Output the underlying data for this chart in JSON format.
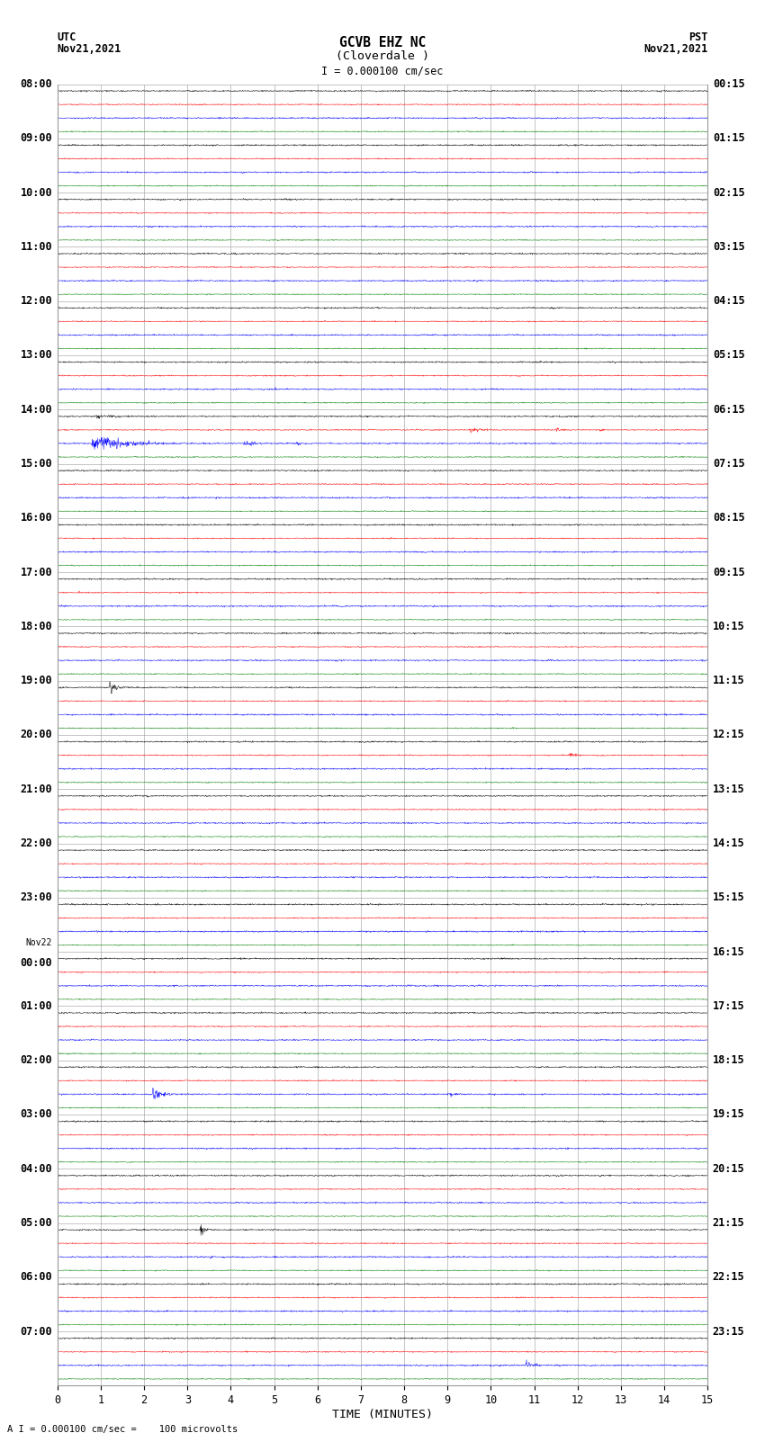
{
  "title_line1": "GCVB EHZ NC",
  "title_line2": "(Cloverdale )",
  "scale_label": "I = 0.000100 cm/sec",
  "utc_label": "UTC",
  "utc_date": "Nov21,2021",
  "pst_label": "PST",
  "pst_date": "Nov21,2021",
  "bottom_label": "A I = 0.000100 cm/sec =    100 microvolts",
  "xlabel": "TIME (MINUTES)",
  "left_times": [
    "08:00",
    "09:00",
    "10:00",
    "11:00",
    "12:00",
    "13:00",
    "14:00",
    "15:00",
    "16:00",
    "17:00",
    "18:00",
    "19:00",
    "20:00",
    "21:00",
    "22:00",
    "23:00",
    "Nov22\n00:00",
    "01:00",
    "02:00",
    "03:00",
    "04:00",
    "05:00",
    "06:00",
    "07:00"
  ],
  "right_times": [
    "00:15",
    "01:15",
    "02:15",
    "03:15",
    "04:15",
    "05:15",
    "06:15",
    "07:15",
    "08:15",
    "09:15",
    "10:15",
    "11:15",
    "12:15",
    "13:15",
    "14:15",
    "15:15",
    "16:15",
    "17:15",
    "18:15",
    "19:15",
    "20:15",
    "21:15",
    "22:15",
    "23:15"
  ],
  "colors": [
    "black",
    "red",
    "blue",
    "green"
  ],
  "n_rows": 24,
  "n_traces_per_row": 4,
  "minutes": 15,
  "bg_color": "white",
  "grid_color": "#aaaaaa",
  "font_size": 8.5
}
